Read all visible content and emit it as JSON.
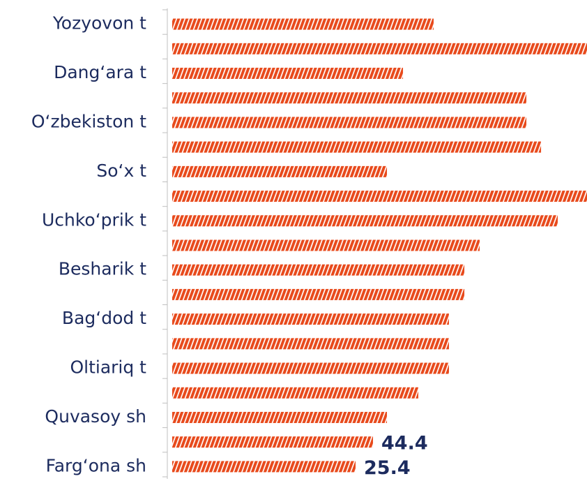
{
  "chart_data": {
    "type": "bar",
    "orientation": "horizontal",
    "categories": [
      "Yozyovon t",
      null,
      "Dang‘ara t",
      null,
      "O‘zbekiston t",
      null,
      "So‘x t",
      null,
      "Uchko‘prik t",
      null,
      "Besharik t",
      null,
      "Bag‘dod t",
      null,
      "Oltiariq t",
      null,
      "Quvasoy sh",
      null,
      "Farg‘ona sh"
    ],
    "values": [
      110.5,
      277.7,
      77.1,
      211.6,
      211.6,
      227.6,
      59.6,
      277.7,
      245.8,
      160.7,
      144.0,
      144.0,
      127.2,
      127.2,
      127.2,
      93.8,
      59.6,
      44.4,
      25.4
    ],
    "value_labels": [
      null,
      null,
      null,
      null,
      null,
      null,
      null,
      null,
      null,
      null,
      null,
      null,
      null,
      null,
      null,
      null,
      null,
      "44.4",
      "25.4"
    ],
    "color": "#e84a1c",
    "xlim": [
      -174.5,
      277.7
    ]
  }
}
